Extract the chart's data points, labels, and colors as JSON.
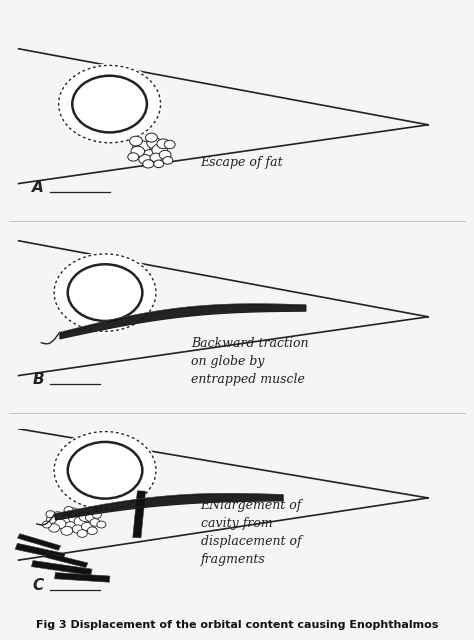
{
  "bg_color": "#f5f5f5",
  "panel_bg": "#f8f8f8",
  "title": "Fig 3 Displacement of the orbital content causing Enophthalmos",
  "label_A": "A",
  "label_B": "B",
  "label_C": "C",
  "text_A": "Escape of fat",
  "text_B": "Backward traction\non globe by\nentrapped muscle",
  "text_C": "ENlargement of\ncavity from\ndisplacement of\nfragments",
  "line_color": "#222222",
  "fat_color": "#dddddd",
  "muscle_color": "#111111",
  "globe_outer_color": "#333333",
  "globe_inner_color": "#222222"
}
